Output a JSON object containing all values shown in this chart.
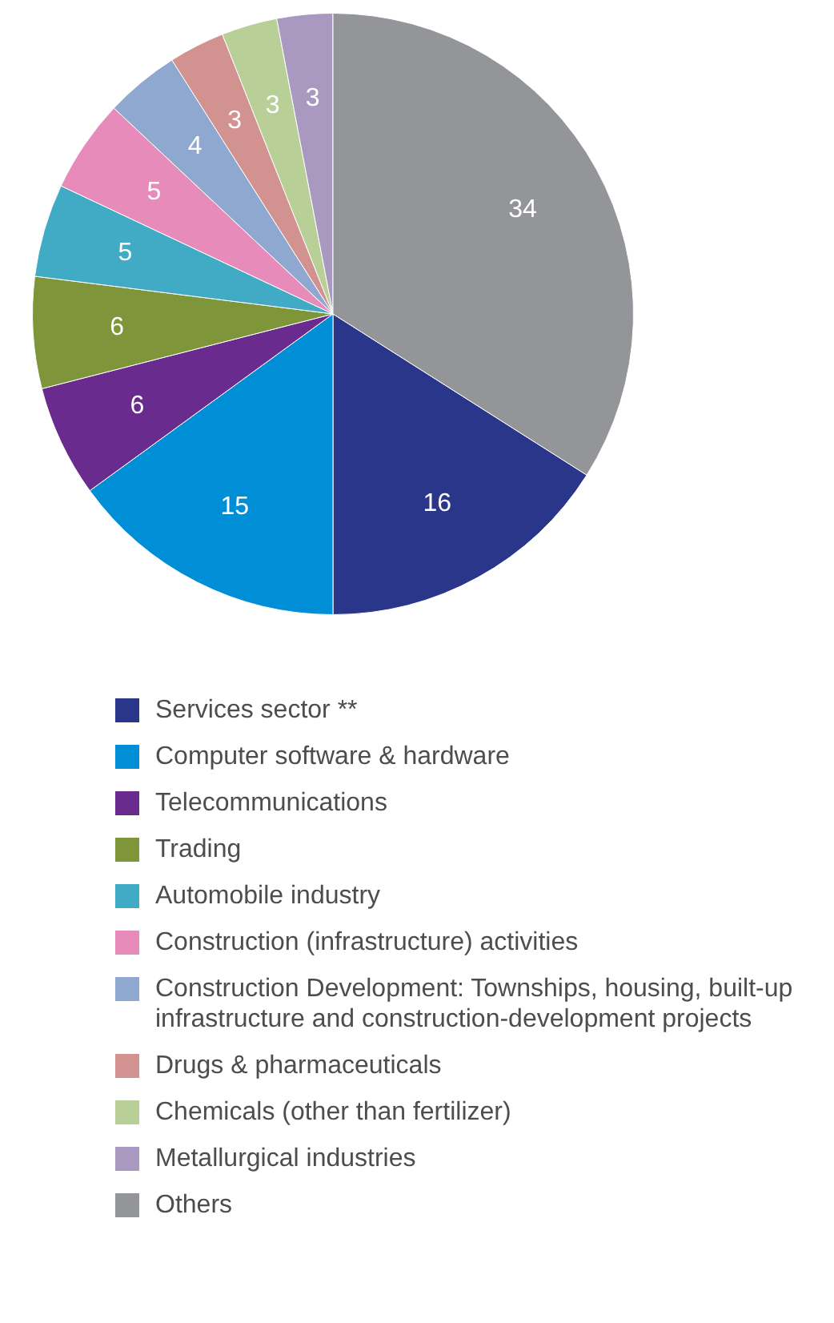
{
  "chart_data": {
    "type": "pie",
    "categories": [
      "Services sector **",
      "Computer software & hardware",
      "Telecommunications",
      "Trading",
      "Automobile industry",
      "Construction (infrastructure) activities",
      "Construction Development: Townships, housing, built-up infrastructure and construction-development projects",
      "Drugs & pharmaceuticals",
      "Chemicals (other than fertilizer)",
      "Metallurgical industries",
      "Others"
    ],
    "values": [
      16,
      15,
      6,
      6,
      5,
      5,
      4,
      3,
      3,
      3,
      34
    ],
    "colors": [
      "#29368a",
      "#008fd6",
      "#6a2b8e",
      "#7e9639",
      "#41abc6",
      "#e78bbb",
      "#8fa8d0",
      "#d19290",
      "#b9cf98",
      "#a999c1",
      "#949598"
    ],
    "data_labels": true,
    "legend": "bottom"
  }
}
